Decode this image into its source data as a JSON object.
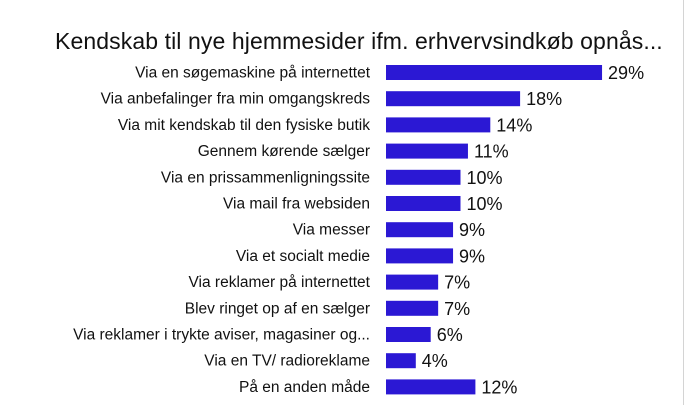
{
  "chart_data": {
    "type": "bar",
    "orientation": "horizontal",
    "title": "Kendskab til nye hjemmesider ifm. erhvervsindkøb opnås...",
    "categories": [
      "Via en søgemaskine på internettet",
      "Via anbefalinger fra min omgangskreds",
      "Via mit kendskab til den fysiske butik",
      "Gennem kørende sælger",
      "Via en prissammenligningssite",
      "Via mail fra websiden",
      "Via messer",
      "Via et socialt medie",
      "Via reklamer på internettet",
      "Blev ringet op af en sælger",
      "Via reklamer i trykte aviser, magasiner og...",
      "Via en TV/ radioreklame",
      "På en anden måde"
    ],
    "values": [
      29,
      18,
      14,
      11,
      10,
      10,
      9,
      9,
      7,
      7,
      6,
      4,
      12
    ],
    "value_labels": [
      "29%",
      "18%",
      "14%",
      "11%",
      "10%",
      "10%",
      "9%",
      "9%",
      "7%",
      "7%",
      "6%",
      "4%",
      "12%"
    ],
    "unit": "%",
    "bar_color": "#2b18d4",
    "grid": false,
    "legend": "none"
  }
}
